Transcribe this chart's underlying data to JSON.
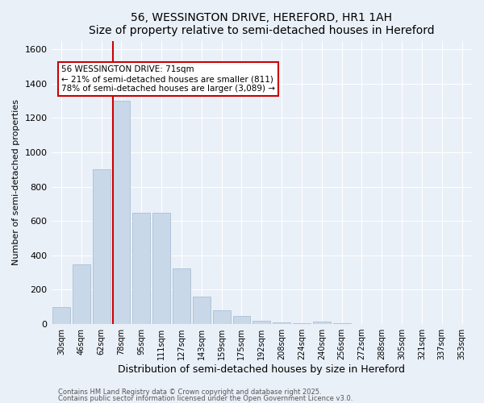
{
  "title": "56, WESSINGTON DRIVE, HEREFORD, HR1 1AH",
  "subtitle": "Size of property relative to semi-detached houses in Hereford",
  "xlabel": "Distribution of semi-detached houses by size in Hereford",
  "ylabel": "Number of semi-detached properties",
  "categories": [
    "30sqm",
    "46sqm",
    "62sqm",
    "78sqm",
    "95sqm",
    "111sqm",
    "127sqm",
    "143sqm",
    "159sqm",
    "175sqm",
    "192sqm",
    "208sqm",
    "224sqm",
    "240sqm",
    "256sqm",
    "272sqm",
    "288sqm",
    "305sqm",
    "321sqm",
    "337sqm",
    "353sqm"
  ],
  "values": [
    100,
    350,
    900,
    1300,
    650,
    650,
    325,
    160,
    80,
    45,
    20,
    10,
    5,
    15,
    5,
    2,
    0,
    2,
    0,
    0,
    0
  ],
  "bar_color": "#c8d8e8",
  "bar_edge_color": "#a0b8d0",
  "ylim": [
    0,
    1650
  ],
  "yticks": [
    0,
    200,
    400,
    600,
    800,
    1000,
    1200,
    1400,
    1600
  ],
  "vline_x": 2.57,
  "vline_color": "#cc0000",
  "annotation_text": "56 WESSINGTON DRIVE: 71sqm\n← 21% of semi-detached houses are smaller (811)\n78% of semi-detached houses are larger (3,089) →",
  "annotation_box_color": "#ffffff",
  "annotation_box_edge_color": "#cc0000",
  "footer1": "Contains HM Land Registry data © Crown copyright and database right 2025.",
  "footer2": "Contains public sector information licensed under the Open Government Licence v3.0.",
  "bg_color": "#eaf0f8",
  "plot_bg_color": "#eaf0f8",
  "grid_color": "#ffffff"
}
